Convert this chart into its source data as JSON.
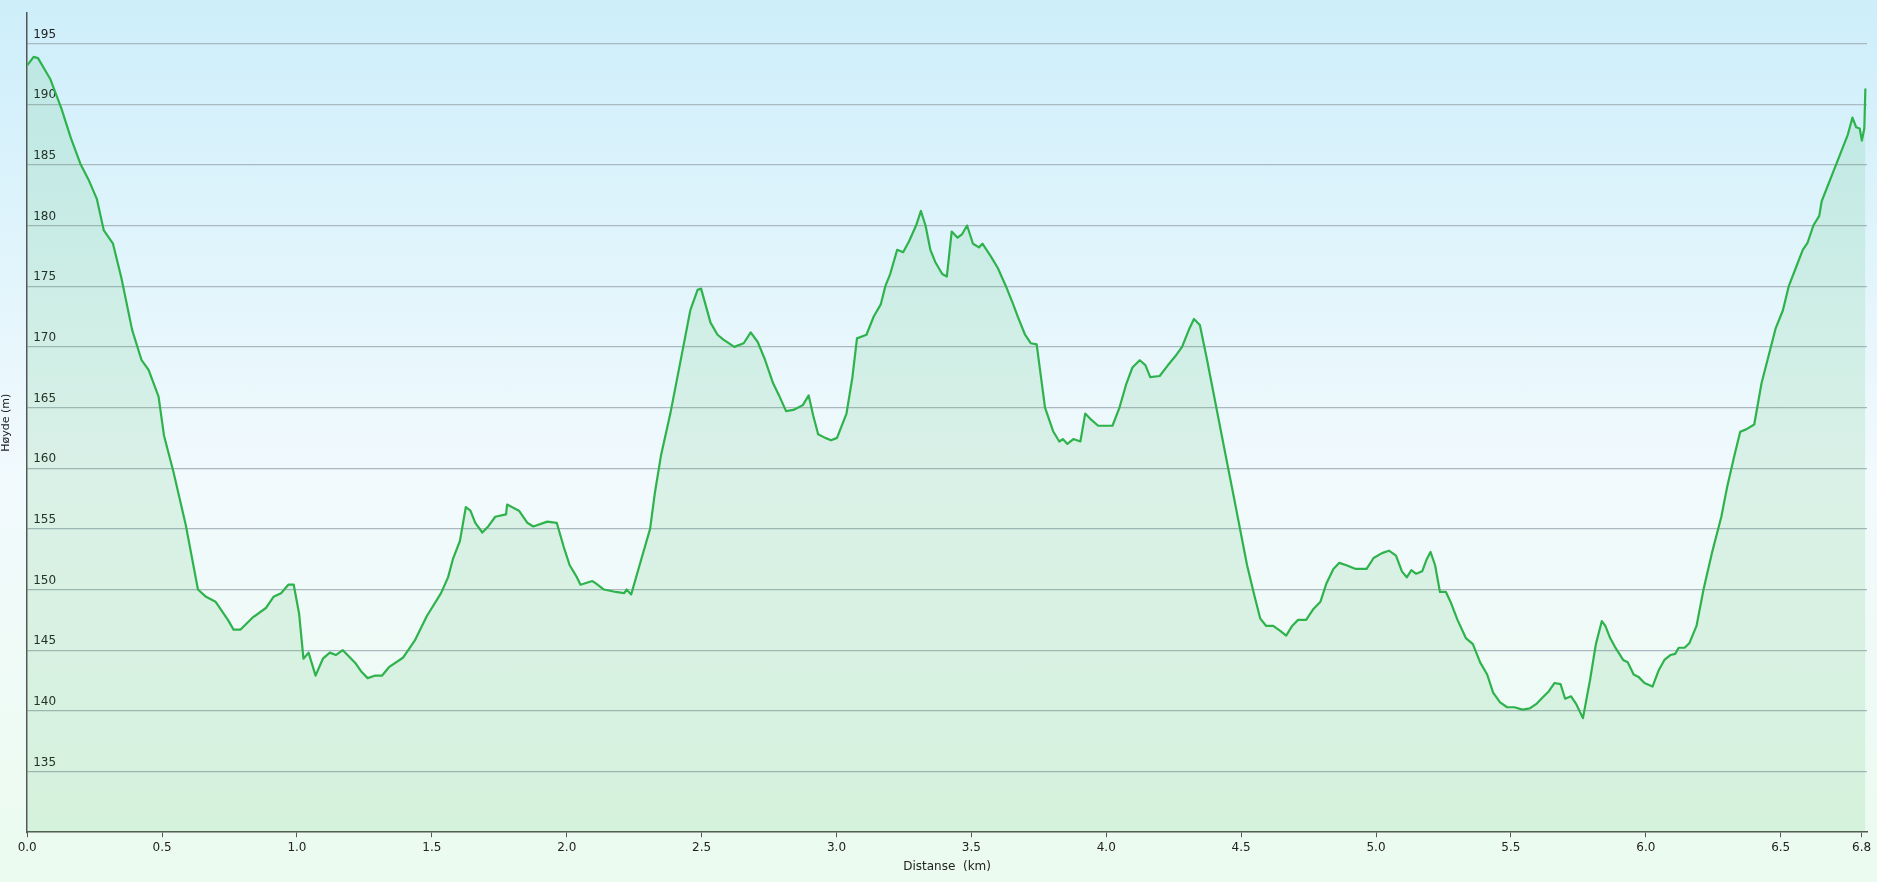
{
  "chart_data": {
    "type": "area",
    "xlabel": "Distanse  (km)",
    "ylabel": "Høyde (m)",
    "x": [
      0,
      0.024,
      0.04,
      0.085,
      0.126,
      0.162,
      0.197,
      0.227,
      0.258,
      0.284,
      0.318,
      0.349,
      0.389,
      0.424,
      0.45,
      0.487,
      0.507,
      0.542,
      0.588,
      0.633,
      0.663,
      0.698,
      0.744,
      0.765,
      0.791,
      0.836,
      0.886,
      0.913,
      0.941,
      0.968,
      0.988,
      1.008,
      1.024,
      1.043,
      1.069,
      1.096,
      1.122,
      1.144,
      1.17,
      1.201,
      1.218,
      1.24,
      1.262,
      1.288,
      1.315,
      1.341,
      1.394,
      1.437,
      1.481,
      1.534,
      1.56,
      1.578,
      1.604,
      1.626,
      1.643,
      1.661,
      1.687,
      1.709,
      1.735,
      1.775,
      1.779,
      1.823,
      1.854,
      1.876,
      1.928,
      1.963,
      1.989,
      2.011,
      2.038,
      2.051,
      2.095,
      2.108,
      2.138,
      2.182,
      2.213,
      2.222,
      2.239,
      2.27,
      2.309,
      2.327,
      2.349,
      2.384,
      2.432,
      2.458,
      2.485,
      2.498,
      2.533,
      2.559,
      2.581,
      2.621,
      2.656,
      2.682,
      2.708,
      2.734,
      2.765,
      2.787,
      2.813,
      2.84,
      2.875,
      2.897,
      2.914,
      2.932,
      2.958,
      2.98,
      3.002,
      3.037,
      3.059,
      3.076,
      3.111,
      3.138,
      3.164,
      3.181,
      3.199,
      3.225,
      3.247,
      3.269,
      3.295,
      3.313,
      3.33,
      3.348,
      3.366,
      3.392,
      3.409,
      3.427,
      3.449,
      3.466,
      3.484,
      3.506,
      3.528,
      3.541,
      3.571,
      3.598,
      3.628,
      3.655,
      3.672,
      3.699,
      3.72,
      3.742,
      3.773,
      3.804,
      3.826,
      3.839,
      3.856,
      3.878,
      3.904,
      3.922,
      3.944,
      3.97,
      4.023,
      4.049,
      4.075,
      4.097,
      4.124,
      4.145,
      4.163,
      4.198,
      4.229,
      4.255,
      4.281,
      4.308,
      4.325,
      4.347,
      4.373,
      4.408,
      4.443,
      4.474,
      4.522,
      4.549,
      4.571,
      4.593,
      4.619,
      4.645,
      4.667,
      4.689,
      4.711,
      4.741,
      4.768,
      4.794,
      4.816,
      4.842,
      4.864,
      4.89,
      4.925,
      4.965,
      4.991,
      5.022,
      5.048,
      5.074,
      5.096,
      5.114,
      5.131,
      5.149,
      5.171,
      5.188,
      5.202,
      5.219,
      5.237,
      5.259,
      5.276,
      5.302,
      5.333,
      5.359,
      5.386,
      5.412,
      5.434,
      5.46,
      5.486,
      5.513,
      5.543,
      5.57,
      5.596,
      5.622,
      5.64,
      5.662,
      5.684,
      5.701,
      5.723,
      5.741,
      5.767,
      5.793,
      5.815,
      5.837,
      5.85,
      5.868,
      5.885,
      5.916,
      5.933,
      5.955,
      5.973,
      5.995,
      6.025,
      6.047,
      6.069,
      6.091,
      6.109,
      6.122,
      6.144,
      6.162,
      6.188,
      6.214,
      6.245,
      6.28,
      6.302,
      6.328,
      6.35,
      6.372,
      6.402,
      6.429,
      6.481,
      6.508,
      6.53,
      6.556,
      6.582,
      6.6,
      6.621,
      6.643,
      6.652,
      6.705,
      6.749,
      6.766,
      6.78,
      6.793,
      6.801,
      6.81,
      6.814
    ],
    "series": [
      {
        "color": "#2eb34c",
        "values": [
          193.2,
          193.9,
          193.8,
          192.1,
          189.7,
          187.2,
          185.1,
          183.8,
          182.2,
          179.6,
          178.5,
          175.7,
          171.4,
          168.9,
          168.1,
          165.9,
          162.7,
          159.7,
          155.3,
          150.0,
          149.4,
          149.0,
          147.5,
          146.7,
          146.7,
          147.7,
          148.5,
          149.4,
          149.7,
          150.4,
          150.4,
          148.0,
          144.3,
          144.8,
          142.9,
          144.3,
          144.8,
          144.6,
          145.0,
          144.3,
          143.9,
          143.2,
          142.7,
          142.9,
          142.9,
          143.6,
          144.4,
          145.8,
          147.8,
          149.7,
          151.0,
          152.5,
          154.0,
          156.8,
          156.5,
          155.5,
          154.7,
          155.2,
          156.0,
          156.2,
          157.0,
          156.5,
          155.5,
          155.2,
          155.6,
          155.5,
          153.5,
          152.0,
          151.0,
          150.4,
          150.7,
          150.5,
          150.0,
          149.8,
          149.7,
          150.0,
          149.6,
          152.0,
          155.0,
          158.0,
          161.0,
          164.5,
          170.0,
          173.0,
          174.7,
          174.8,
          172.0,
          171.0,
          170.6,
          170.0,
          170.3,
          171.2,
          170.4,
          169.0,
          167.0,
          166.0,
          164.7,
          164.8,
          165.2,
          166.0,
          164.3,
          162.8,
          162.5,
          162.3,
          162.5,
          164.5,
          167.5,
          170.7,
          171.0,
          172.5,
          173.5,
          175.0,
          176.0,
          178.0,
          177.8,
          178.7,
          180.0,
          181.2,
          180.0,
          178.0,
          177.0,
          176.0,
          175.8,
          179.5,
          179.0,
          179.3,
          180.0,
          178.5,
          178.2,
          178.5,
          177.5,
          176.5,
          175.0,
          173.5,
          172.5,
          171.0,
          170.3,
          170.2,
          165.0,
          163.0,
          162.2,
          162.4,
          162.0,
          162.4,
          162.2,
          164.5,
          164.0,
          163.5,
          163.5,
          165.0,
          167.0,
          168.3,
          168.9,
          168.5,
          167.5,
          167.6,
          168.5,
          169.2,
          170.0,
          171.5,
          172.3,
          171.8,
          169.0,
          165.0,
          161.0,
          157.5,
          152.0,
          149.5,
          147.6,
          147.0,
          147.0,
          146.6,
          146.2,
          147.0,
          147.5,
          147.5,
          148.4,
          149.0,
          150.5,
          151.7,
          152.2,
          152.0,
          151.7,
          151.7,
          152.6,
          153.0,
          153.2,
          152.8,
          151.5,
          151.0,
          151.6,
          151.3,
          151.5,
          152.5,
          153.1,
          152.0,
          149.8,
          149.8,
          149.0,
          147.5,
          146.0,
          145.5,
          144.0,
          143.0,
          141.5,
          140.7,
          140.3,
          140.3,
          140.1,
          140.2,
          140.6,
          141.2,
          141.6,
          142.3,
          142.2,
          141.0,
          141.2,
          140.6,
          139.4,
          142.5,
          145.5,
          147.4,
          147.0,
          146.0,
          145.3,
          144.2,
          144.0,
          143.0,
          142.8,
          142.3,
          142.0,
          143.3,
          144.2,
          144.6,
          144.7,
          145.2,
          145.2,
          145.6,
          147.0,
          150.0,
          153.0,
          156.0,
          158.5,
          161.0,
          163.0,
          163.2,
          163.6,
          167.0,
          171.5,
          173.0,
          175.0,
          176.5,
          178.0,
          178.6,
          180.0,
          180.8,
          182.0,
          185.0,
          187.5,
          188.9,
          188.1,
          188.0,
          187.0,
          188.0,
          191.3
        ]
      }
    ],
    "xlim": [
      0,
      6.82
    ],
    "xticks": [
      {
        "value": 0,
        "label": "0.0"
      },
      {
        "value": 0.5,
        "label": "0.5"
      },
      {
        "value": 1,
        "label": "1.0"
      },
      {
        "value": 1.5,
        "label": "1.5"
      },
      {
        "value": 2,
        "label": "2.0"
      },
      {
        "value": 2.5,
        "label": "2.5"
      },
      {
        "value": 3,
        "label": "3.0"
      },
      {
        "value": 3.5,
        "label": "3.5"
      },
      {
        "value": 4,
        "label": "4.0"
      },
      {
        "value": 4.5,
        "label": "4.5"
      },
      {
        "value": 5,
        "label": "5.0"
      },
      {
        "value": 5.5,
        "label": "5.5"
      },
      {
        "value": 6,
        "label": "6.0"
      },
      {
        "value": 6.5,
        "label": "6.5"
      },
      {
        "value": 6.8,
        "label": "6.8"
      }
    ],
    "ylim": [
      130,
      197.5
    ],
    "yticks": [
      135,
      140,
      145,
      150,
      155,
      160,
      165,
      170,
      175,
      180,
      185,
      190,
      195
    ],
    "grid": "y",
    "marker": "none",
    "line_style": "solid"
  }
}
